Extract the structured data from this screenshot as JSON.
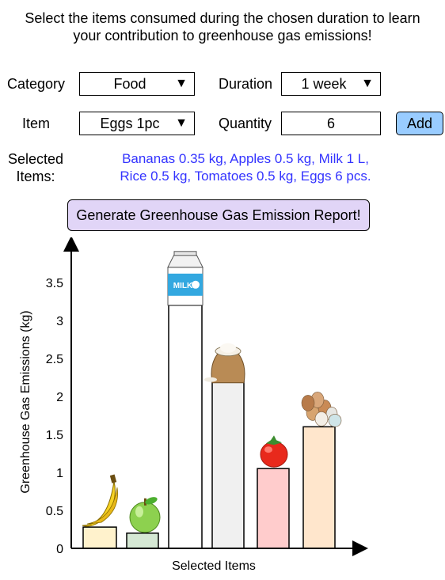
{
  "intro": {
    "line1": "Select the items consumed during the chosen duration to learn",
    "line2": "your contribution to greenhouse gas emissions!"
  },
  "form": {
    "category_label": "Category",
    "category_value": "Food",
    "duration_label": "Duration",
    "duration_value": "1 week",
    "item_label": "Item",
    "item_value": "Eggs 1pc",
    "quantity_label": "Quantity",
    "quantity_value": "6",
    "add_label": "Add"
  },
  "selected": {
    "label_line1": "Selected",
    "label_line2": "Items:",
    "items_line1": "Bananas 0.35 kg, Apples 0.5 kg, Milk 1 L,",
    "items_line2": "Rice 0.5 kg, Tomatoes 0.5 kg, Eggs 6 pcs."
  },
  "generate_label": "Generate Greenhouse Gas Emission Report!",
  "chart_data": {
    "type": "bar",
    "xlabel": "Selected Items",
    "ylabel": "Greenhouse Gas Emissions (kg)",
    "ylim": [
      0,
      3.9
    ],
    "yticks": [
      "0",
      "0.5",
      "1",
      "1.5",
      "2",
      "2.5",
      "3",
      "3.5"
    ],
    "categories": [
      "Bananas",
      "Apples",
      "Milk",
      "Rice",
      "Tomatoes",
      "Eggs"
    ],
    "values": [
      0.28,
      0.2,
      3.2,
      2.2,
      1.05,
      1.6
    ],
    "colors": [
      "#fff2cc",
      "#d5e8d4",
      "#ffffff",
      "#f0f0f0",
      "#ffcccc",
      "#ffe6cc"
    ],
    "icons": [
      "banana-icon",
      "apple-icon",
      "milk-carton-icon",
      "rice-sack-icon",
      "tomato-icon",
      "eggs-icon"
    ],
    "milk_carton_text": "MILK"
  }
}
